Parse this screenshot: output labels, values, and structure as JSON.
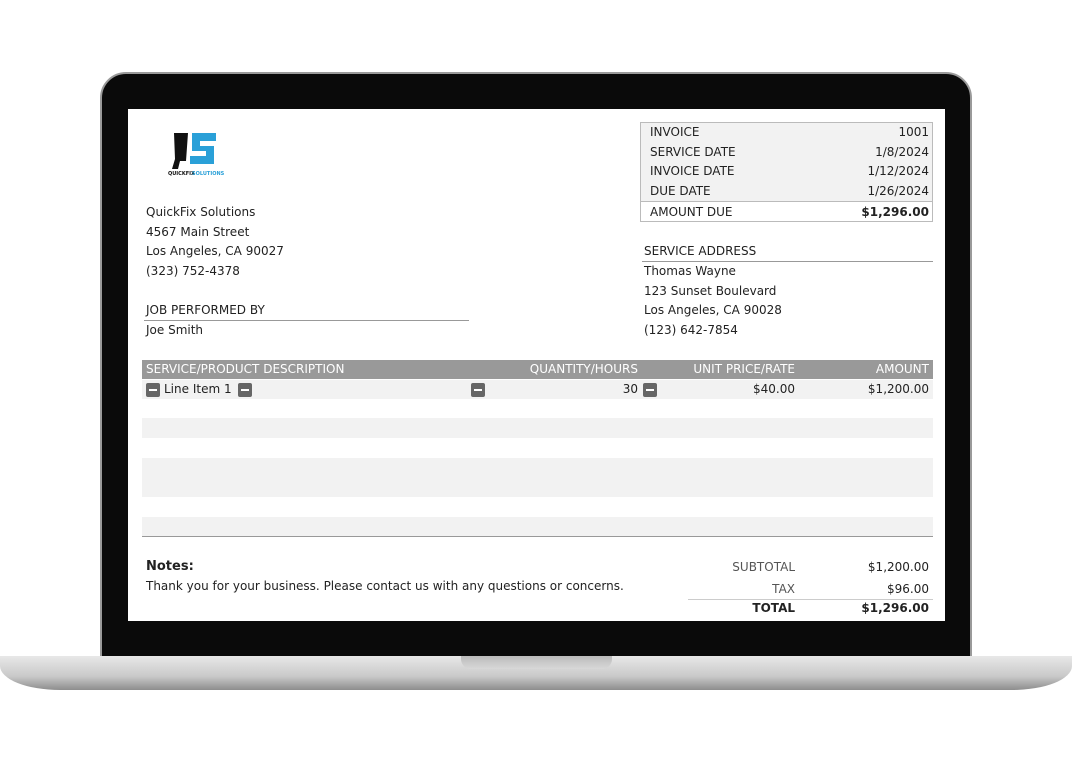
{
  "company": {
    "logo_text": "QS",
    "logo_caption": "QUICKFIX SOLUTIONS",
    "name": "QuickFix Solutions",
    "street": "4567 Main Street",
    "city": "Los Angeles, CA 90027",
    "phone": "(323) 752-4378"
  },
  "summary": {
    "invoice_label": "INVOICE",
    "invoice": "1001",
    "service_date_label": "SERVICE DATE",
    "service_date": "1/8/2024",
    "invoice_date_label": "INVOICE DATE",
    "invoice_date": "1/12/2024",
    "due_date_label": "DUE DATE",
    "due_date": "1/26/2024",
    "amount_due_label": "AMOUNT DUE",
    "amount_due": "$1,296.00"
  },
  "job": {
    "label": "JOB PERFORMED BY",
    "name": "Joe Smith"
  },
  "service_address": {
    "label": "SERVICE ADDRESS",
    "name": "Thomas Wayne",
    "street": "123 Sunset Boulevard",
    "city": "Los Angeles, CA 90028",
    "phone": "(123) 642-7854"
  },
  "table": {
    "headers": [
      "SERVICE/PRODUCT DESCRIPTION",
      "QUANTITY/HOURS",
      "UNIT PRICE/RATE",
      "AMOUNT"
    ],
    "rows": [
      {
        "description": "Line Item 1",
        "quantity": "30",
        "rate": "$40.00",
        "amount": "$1,200.00"
      }
    ]
  },
  "notes": {
    "label": "Notes:",
    "text": "Thank you for your business. Please contact us with any questions or concerns."
  },
  "totals": {
    "subtotal_label": "SUBTOTAL",
    "subtotal": "$1,200.00",
    "tax_label": "TAX",
    "tax": "$96.00",
    "total_label": "TOTAL",
    "total": "$1,296.00"
  }
}
